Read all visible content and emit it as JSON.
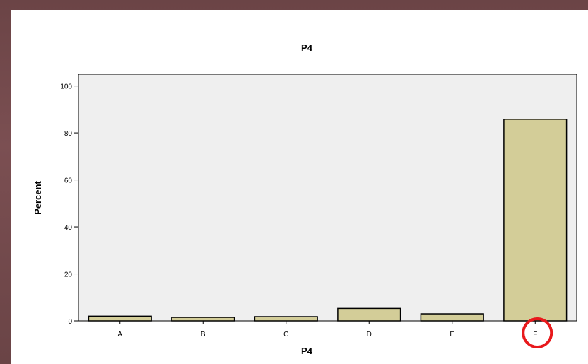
{
  "chart_data": {
    "type": "bar",
    "title": "P4",
    "xlabel": "P4",
    "ylabel": "Percent",
    "categories": [
      "A",
      "B",
      "C",
      "D",
      "E",
      "F"
    ],
    "values": [
      2.0,
      1.5,
      1.8,
      5.3,
      3.0,
      85.8
    ],
    "ylim": [
      0,
      105
    ],
    "yticks": [
      0,
      20,
      40,
      60,
      80,
      100
    ],
    "grid": false,
    "legend": "none",
    "colors": {
      "bar_fill": "#d3cd98",
      "bar_stroke": "#000000",
      "plot_background": "#efefef",
      "highlight": "#e8191c"
    },
    "highlighted_category": "F"
  }
}
